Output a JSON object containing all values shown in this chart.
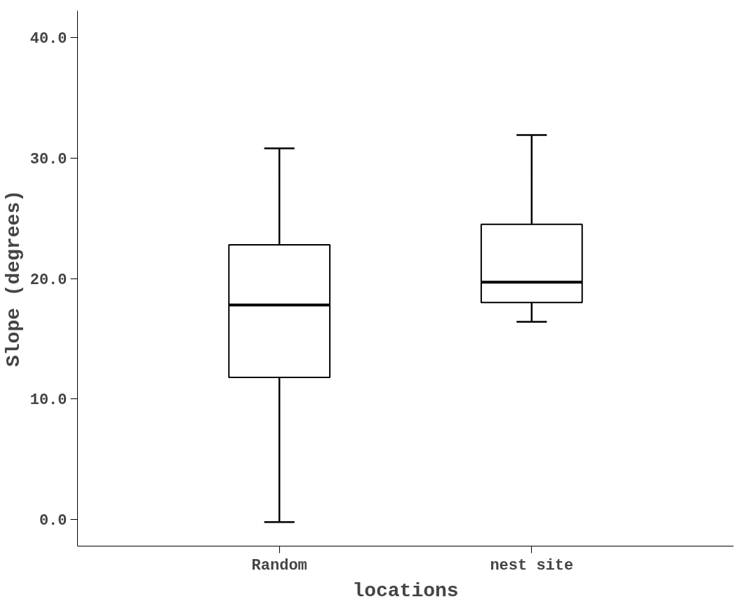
{
  "chart_data": {
    "type": "box",
    "xlabel": "locations",
    "ylabel": "Slope (degrees)",
    "categories": [
      "Random",
      "nest site"
    ],
    "boxes": [
      {
        "low": -0.2,
        "q1": 11.8,
        "median": 17.8,
        "q3": 22.8,
        "high": 30.8
      },
      {
        "low": 16.4,
        "q1": 18.0,
        "median": 19.7,
        "q3": 24.5,
        "high": 31.9
      }
    ],
    "ylim": [
      -2.2,
      42.2
    ],
    "yticks": [
      {
        "value": 0,
        "label": "0.0"
      },
      {
        "value": 10,
        "label": "10.0"
      },
      {
        "value": 20,
        "label": "20.0"
      },
      {
        "value": 30,
        "label": "30.0"
      },
      {
        "value": 40,
        "label": "40.0"
      }
    ],
    "grid": false
  }
}
